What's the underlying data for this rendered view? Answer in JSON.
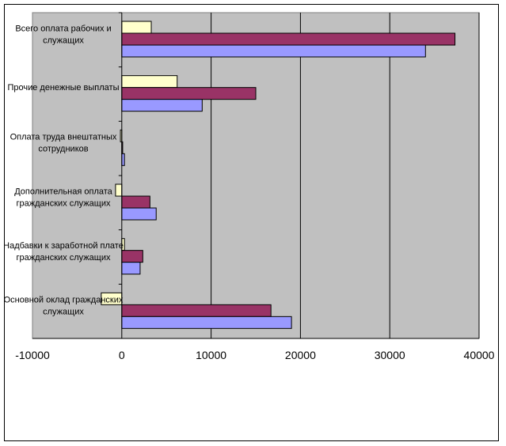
{
  "chart_data": {
    "type": "bar",
    "orientation": "horizontal",
    "title": "",
    "xlabel": "",
    "ylabel": "",
    "xlim": [
      -10000,
      40000
    ],
    "xticks": [
      -10000,
      0,
      10000,
      20000,
      30000,
      40000
    ],
    "xtick_labels": [
      "-10000",
      "0",
      "10000",
      "20000",
      "30000",
      "40000"
    ],
    "grid": "vertical major gridlines",
    "legend": "none",
    "categories": [
      [
        "Всего оплата рабочих и",
        "служащих"
      ],
      [
        "Прочие денежные выплаты"
      ],
      [
        "Оплата труда внештатных",
        "сотрудников"
      ],
      [
        "Дополнительная оплата",
        "гражданских служащих"
      ],
      [
        "Надбавки к заработной плате",
        "гражданских служащих"
      ],
      [
        "Основной оклад гражданских",
        "служащих"
      ]
    ],
    "series": [
      {
        "name": "series-1",
        "color": "#FFFFCC",
        "values": [
          3300,
          6200,
          -150,
          -700,
          300,
          -2300
        ]
      },
      {
        "name": "series-2",
        "color": "#993366",
        "values": [
          37300,
          15000,
          100,
          3150,
          2350,
          16700
        ]
      },
      {
        "name": "series-3",
        "color": "#9999FF",
        "values": [
          34000,
          9000,
          300,
          3850,
          2050,
          19000
        ]
      }
    ],
    "plot_background": "#C0C0C0"
  }
}
